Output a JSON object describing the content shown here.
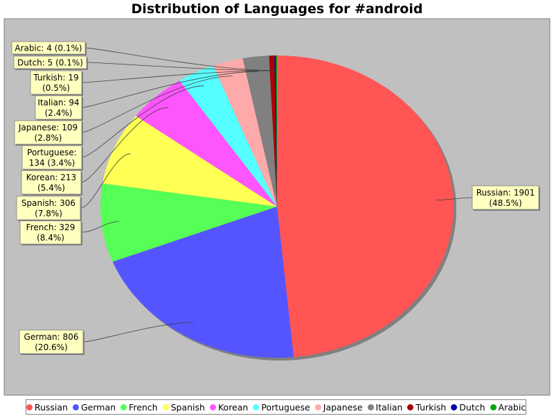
{
  "chart_data": {
    "type": "pie",
    "title": "Distribution of Languages for #android",
    "slices": [
      {
        "name": "Russian",
        "value": 1901,
        "label": "Russian: 1901 (48.5%)",
        "color": "#ff5555"
      },
      {
        "name": "German",
        "value": 806,
        "label": "German: 806 (20.6%)",
        "color": "#5555ff"
      },
      {
        "name": "French",
        "value": 329,
        "label": "French: 329 (8.4%)",
        "color": "#55ff55"
      },
      {
        "name": "Spanish",
        "value": 306,
        "label": "Spanish: 306 (7.8%)",
        "color": "#ffff55"
      },
      {
        "name": "Korean",
        "value": 213,
        "label": "Korean: 213 (5.4%)",
        "color": "#ff55ff"
      },
      {
        "name": "Portuguese",
        "value": 134,
        "label": "Portuguese: 134 (3.4%)",
        "color": "#55ffff"
      },
      {
        "name": "Japanese",
        "value": 109,
        "label": "Japanese: 109 (2.8%)",
        "color": "#ffaaaa"
      },
      {
        "name": "Italian",
        "value": 94,
        "label": "Italian: 94 (2.4%)",
        "color": "#808080"
      },
      {
        "name": "Turkish",
        "value": 19,
        "label": "Turkish: 19 (0.5%)",
        "color": "#aa0000"
      },
      {
        "name": "Dutch",
        "value": 5,
        "label": "Dutch: 5 (0.1%)",
        "color": "#0000aa"
      },
      {
        "name": "Arabic",
        "value": 4,
        "label": "Arabic: 4 (0.1%)",
        "color": "#00aa00"
      }
    ],
    "legend_placement": "bottom",
    "plot_background": "#c0c0c0"
  }
}
